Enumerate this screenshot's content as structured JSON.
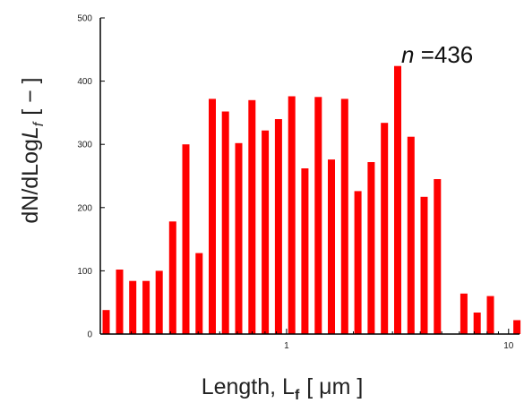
{
  "chart_data": {
    "type": "bar",
    "title": "",
    "annotation": {
      "prefix": "n",
      "text": " =436"
    },
    "xlabel": {
      "main": "Length, L",
      "sub": "f",
      "unit": "[ μm ]"
    },
    "ylabel": {
      "main": "dN/dLog",
      "var": "L",
      "sub": "f",
      "unit": "[ − ]"
    },
    "x_scale": "log",
    "xlim": [
      0.145,
      11.2
    ],
    "ylim": [
      0,
      500
    ],
    "y_ticks": [
      0,
      100,
      200,
      300,
      400,
      500
    ],
    "x_ticks": [
      1,
      10
    ],
    "x": [
      0.154,
      0.177,
      0.203,
      0.233,
      0.267,
      0.307,
      0.352,
      0.404,
      0.463,
      0.531,
      0.609,
      0.699,
      0.802,
      0.92,
      1.055,
      1.21,
      1.389,
      1.593,
      1.828,
      2.097,
      2.405,
      2.759,
      3.166,
      3.632,
      4.166,
      4.78,
      5.483,
      6.29,
      7.216,
      8.279,
      9.497,
      10.9
    ],
    "values": [
      38,
      102,
      84,
      84,
      100,
      178,
      300,
      128,
      372,
      352,
      302,
      370,
      322,
      340,
      376,
      262,
      375,
      276,
      372,
      226,
      272,
      334,
      424,
      312,
      217,
      245,
      0,
      64,
      34,
      60,
      0,
      22
    ],
    "grid": false,
    "bar_color": "#ff0000"
  }
}
